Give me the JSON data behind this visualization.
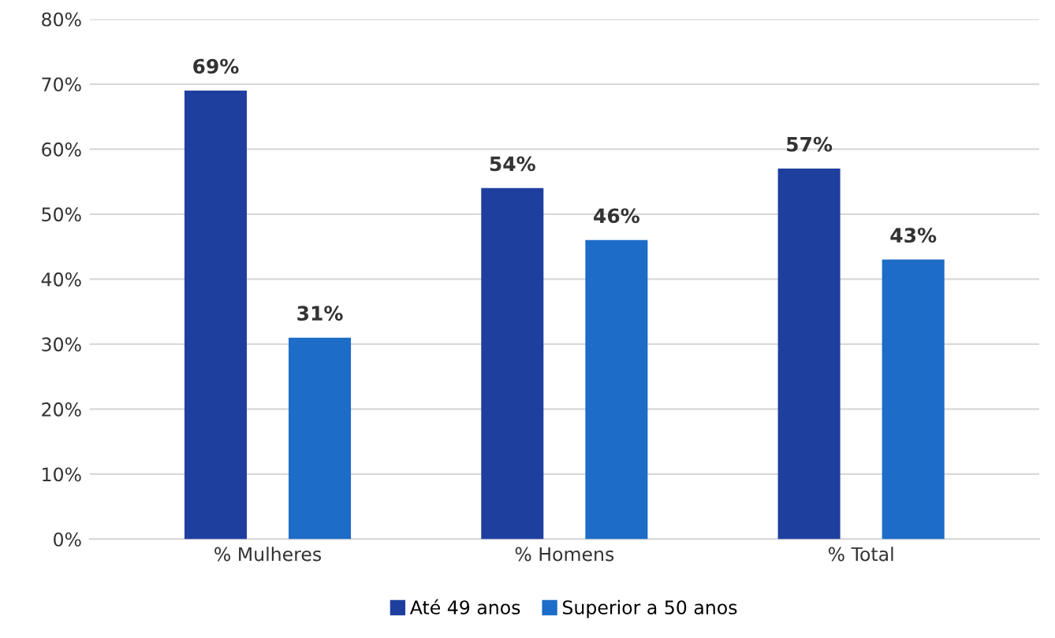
{
  "chart_data": {
    "type": "bar",
    "categories": [
      "% Mulheres",
      "% Homens",
      "% Total"
    ],
    "series": [
      {
        "name": "Até 49 anos",
        "color": "#1f3f9f",
        "values": [
          69,
          54,
          57
        ],
        "value_labels": [
          "69%",
          "54%",
          "57%"
        ]
      },
      {
        "name": "Superior a 50 anos",
        "color": "#1c6cc8",
        "values": [
          31,
          46,
          43
        ],
        "value_labels": [
          "31%",
          "46%",
          "43%"
        ]
      }
    ],
    "ylim": [
      0,
      80
    ],
    "yticks": [
      {
        "value": 0,
        "label": "0%"
      },
      {
        "value": 10,
        "label": "10%"
      },
      {
        "value": 20,
        "label": "20%"
      },
      {
        "value": 30,
        "label": "30%"
      },
      {
        "value": 40,
        "label": "40%"
      },
      {
        "value": 50,
        "label": "50%"
      },
      {
        "value": 60,
        "label": "60%"
      },
      {
        "value": 70,
        "label": "70%"
      },
      {
        "value": 80,
        "label": "80%"
      }
    ],
    "grid": "y",
    "legend": "bottom"
  }
}
